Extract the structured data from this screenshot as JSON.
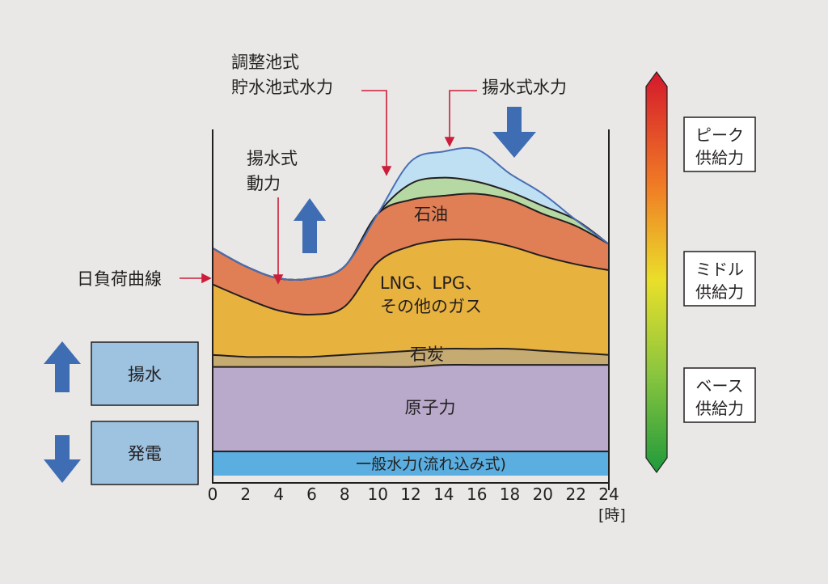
{
  "chart_data": {
    "type": "area",
    "x_ticks": [
      "0",
      "2",
      "4",
      "6",
      "8",
      "10",
      "12",
      "14",
      "16",
      "18",
      "20",
      "22",
      "24"
    ],
    "x_unit": "[時]",
    "x": [
      0,
      2,
      4,
      6,
      8,
      10,
      12,
      14,
      16,
      18,
      20,
      22,
      24
    ],
    "layer_labels": {
      "hydro": "一般水力(流れ込み式)",
      "nuclear": "原子力",
      "coal": "石炭",
      "lng": "LNG、LPG、",
      "lng2": "その他のガス",
      "oil": "石油"
    },
    "series_top": {
      "hydro": [
        12,
        12,
        12,
        12,
        12,
        12,
        12,
        12,
        12,
        12,
        12,
        12,
        12
      ],
      "nuclear": [
        54,
        54,
        54,
        54,
        54,
        54,
        54,
        55,
        55,
        55,
        55,
        55,
        55
      ],
      "coal": [
        60,
        59,
        59,
        59,
        60,
        61,
        62,
        63,
        63,
        63,
        62,
        61,
        60
      ],
      "lng": [
        95,
        88,
        82,
        80,
        84,
        106,
        114,
        117,
        117,
        114,
        109,
        105,
        102
      ],
      "oil": [
        113,
        104,
        98,
        98,
        104,
        130,
        137,
        139,
        140,
        137,
        130,
        124,
        115
      ],
      "reservoir": [
        113,
        104,
        98,
        98,
        104,
        130,
        145,
        148,
        146,
        141,
        134,
        127,
        115
      ],
      "pumped": [
        113,
        104,
        98,
        98,
        104,
        130,
        156,
        161,
        162,
        150,
        140,
        127,
        115
      ]
    },
    "annotations": {
      "chosei": "調整池式",
      "chosui": "貯水池式水力",
      "yosui_hydro": "揚水式水力",
      "yosui_power_1": "揚水式",
      "yosui_power_2": "動力",
      "load_curve": "日負荷曲線"
    },
    "legend_boxes": {
      "pump": "揚水",
      "generate": "発電"
    },
    "supply_scale": {
      "peak_1": "ピーク",
      "peak_2": "供給力",
      "middle_1": "ミドル",
      "middle_2": "供給力",
      "base_1": "ベース",
      "base_2": "供給力"
    },
    "colors": {
      "hydro": "#5aaee0",
      "nuclear": "#b9aacc",
      "coal": "#c5aa72",
      "lng": "#e8b23f",
      "oil": "#e07f56",
      "reservoir": "#b6d9a4",
      "pumped": "#bfdff2",
      "load_line": "#4a6fb5",
      "arrow": "#3f6db4",
      "box": "#9dc3e0",
      "pointer": "#cc1e3a"
    },
    "ylim": [
      0,
      180
    ]
  }
}
